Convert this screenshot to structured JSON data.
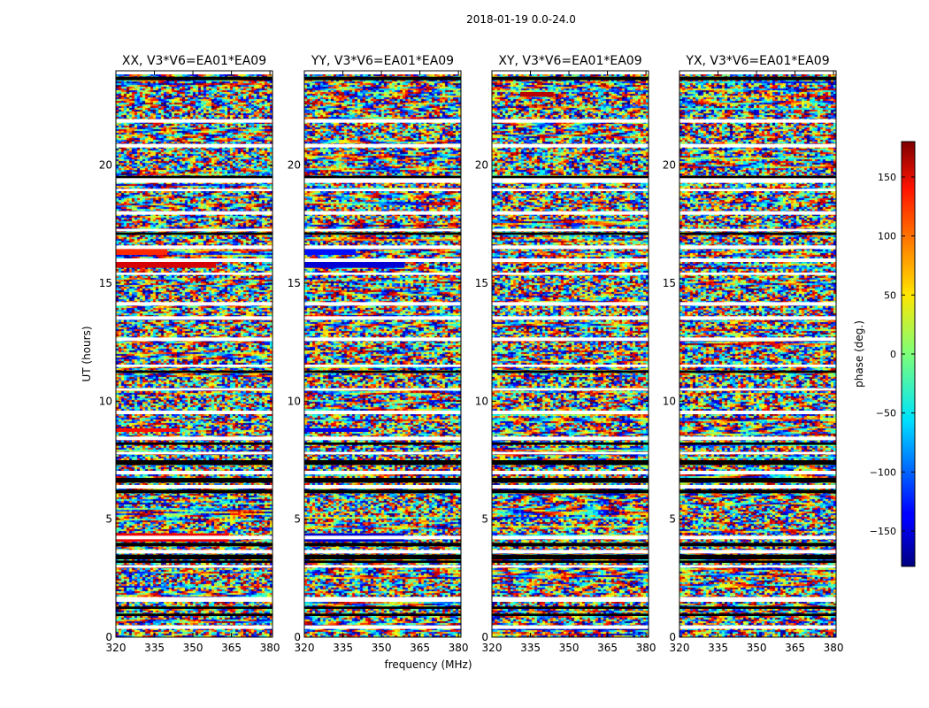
{
  "chart_data": {
    "type": "heatmap",
    "suptitle": "2018-01-19 0.0-24.0",
    "xlabel": "frequency (MHz)",
    "ylabel": "UT (hours)",
    "xlim": [
      320,
      381
    ],
    "ylim": [
      0,
      24
    ],
    "xticks": [
      320,
      335,
      350,
      365,
      380
    ],
    "yticks": [
      0,
      5,
      10,
      15,
      20
    ],
    "panels": [
      {
        "title": "XX, V3*V6=EA01*EA09",
        "pol": "XX"
      },
      {
        "title": "YY, V3*V6=EA01*EA09",
        "pol": "YY"
      },
      {
        "title": "XY, V3*V6=EA01*EA09",
        "pol": "XY"
      },
      {
        "title": "YX, V3*V6=EA01*EA09",
        "pol": "YX"
      }
    ],
    "colorbar": {
      "label": "phase (deg.)",
      "range": [
        -180,
        180
      ],
      "ticks": [
        150,
        100,
        50,
        0,
        -50,
        -100,
        -150
      ],
      "colormap": "jet"
    },
    "flagged_bands_hours": [
      [
        23.85,
        24.0
      ],
      [
        21.8,
        21.95
      ],
      [
        20.75,
        20.9
      ],
      [
        19.25,
        19.45
      ],
      [
        18.9,
        19.0
      ],
      [
        17.9,
        18.05
      ],
      [
        17.2,
        17.3
      ],
      [
        16.45,
        16.6
      ],
      [
        15.9,
        16.05
      ],
      [
        15.35,
        15.45
      ],
      [
        14.05,
        14.2
      ],
      [
        13.45,
        13.6
      ],
      [
        12.55,
        12.7
      ],
      [
        11.45,
        11.55
      ],
      [
        10.45,
        10.55
      ],
      [
        9.45,
        9.6
      ],
      [
        8.35,
        8.5
      ],
      [
        7.75,
        7.85
      ],
      [
        6.9,
        7.05
      ],
      [
        6.3,
        6.45
      ],
      [
        4.15,
        4.3
      ],
      [
        3.55,
        3.7
      ],
      [
        2.95,
        3.05
      ],
      [
        1.5,
        1.7
      ],
      [
        0.35,
        0.5
      ]
    ],
    "black_bands_hours": [
      [
        23.6,
        23.75
      ],
      [
        19.4,
        19.55
      ],
      [
        17.05,
        17.15
      ],
      [
        11.2,
        11.3
      ],
      [
        8.15,
        8.25
      ],
      [
        7.3,
        7.5
      ],
      [
        6.55,
        6.75
      ],
      [
        6.1,
        6.25
      ],
      [
        3.85,
        4.0
      ],
      [
        3.3,
        3.5
      ],
      [
        3.15,
        3.25
      ],
      [
        1.2,
        1.3
      ],
      [
        0.9,
        1.0
      ]
    ],
    "strong_phase_features": [
      {
        "pol": "XX",
        "hours": [
          4.05,
          4.4
        ],
        "freq_MHz": [
          320,
          364
        ],
        "phase_deg": 140
      },
      {
        "pol": "XX",
        "hours": [
          15.65,
          16.0
        ],
        "freq_MHz": [
          320,
          359
        ],
        "phase_deg": 150
      },
      {
        "pol": "XX",
        "hours": [
          16.2,
          16.45
        ],
        "freq_MHz": [
          320,
          340
        ],
        "phase_deg": 120
      },
      {
        "pol": "XX",
        "hours": [
          8.7,
          8.85
        ],
        "freq_MHz": [
          320,
          345
        ],
        "phase_deg": 130
      },
      {
        "pol": "YY",
        "hours": [
          4.05,
          4.4
        ],
        "freq_MHz": [
          320,
          359
        ],
        "phase_deg": -150
      },
      {
        "pol": "YY",
        "hours": [
          15.65,
          16.0
        ],
        "freq_MHz": [
          320,
          359
        ],
        "phase_deg": -150
      },
      {
        "pol": "YY",
        "hours": [
          16.2,
          16.45
        ],
        "freq_MHz": [
          320,
          340
        ],
        "phase_deg": -130
      },
      {
        "pol": "YY",
        "hours": [
          8.7,
          8.85
        ],
        "freq_MHz": [
          320,
          345
        ],
        "phase_deg": -140
      },
      {
        "pol": "XY",
        "hours": [
          22.9,
          23.1
        ],
        "freq_MHz": [
          331,
          344
        ],
        "phase_deg": 160
      }
    ]
  }
}
